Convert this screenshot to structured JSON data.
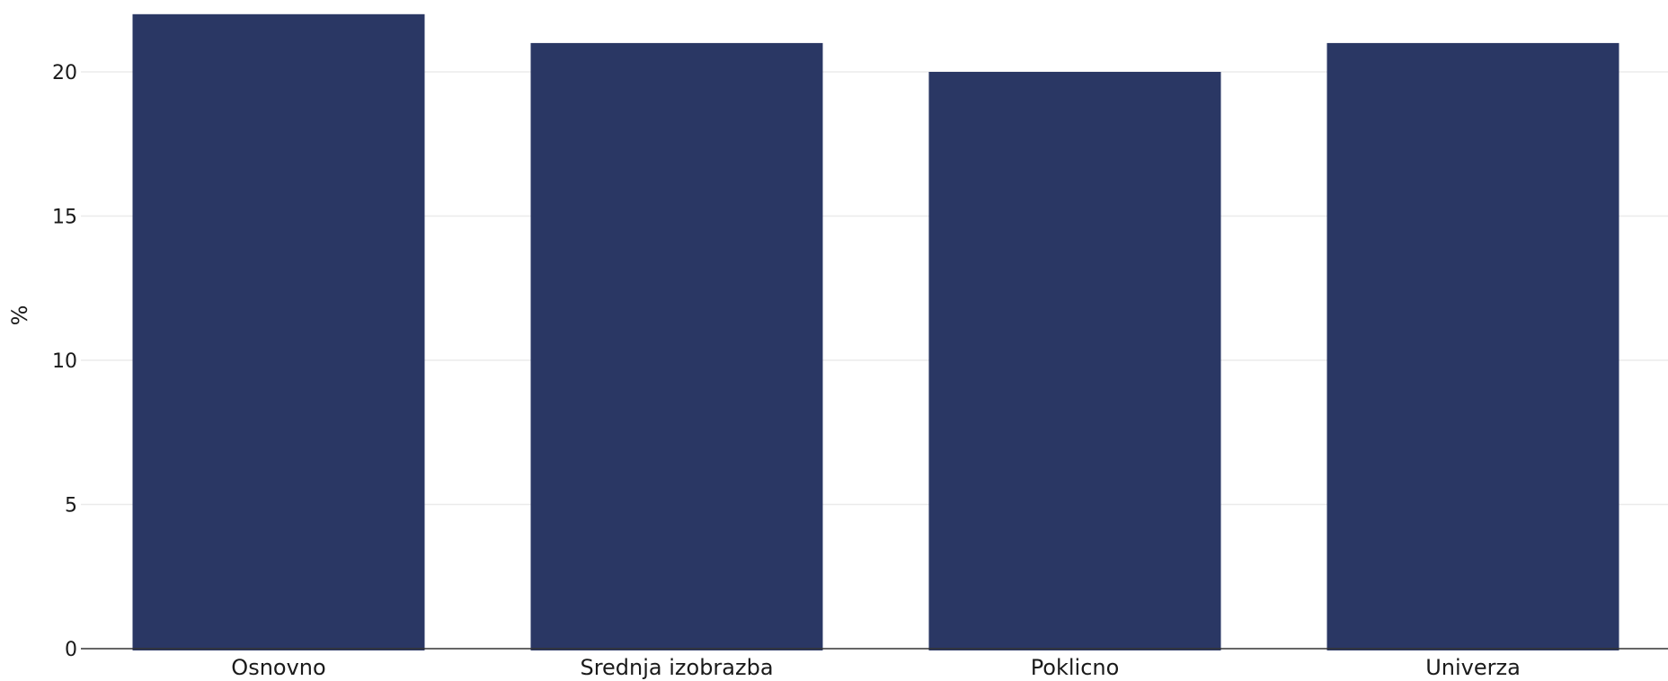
{
  "chart_data": {
    "type": "bar",
    "categories": [
      "Osnovno",
      "Srednja izobrazba",
      "Poklicno",
      "Univerza"
    ],
    "values": [
      22,
      21,
      20,
      21
    ],
    "title": "",
    "xlabel": "",
    "ylabel": "%",
    "ylim": [
      0,
      22
    ],
    "yticks": [
      0,
      5,
      10,
      15,
      20
    ],
    "grid": "horizontal",
    "legend": "none",
    "bar_color": "#2a3764"
  }
}
